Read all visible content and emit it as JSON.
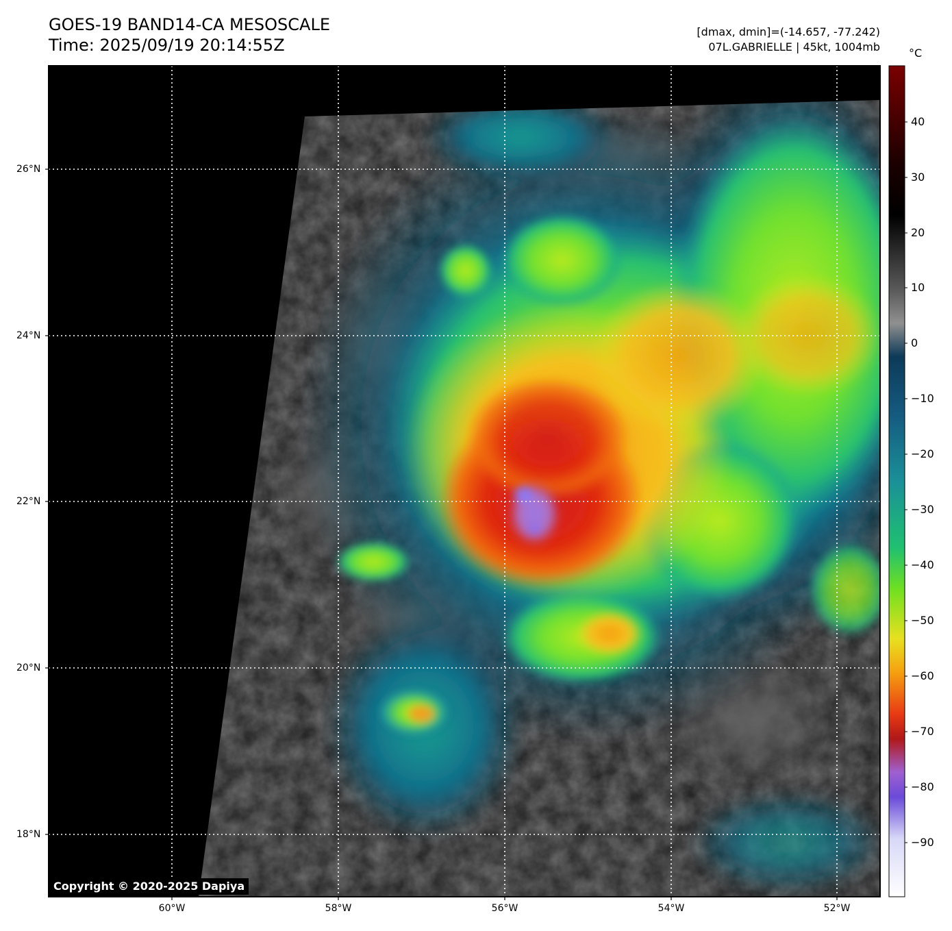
{
  "title": {
    "line1": "GOES-19 BAND14-CA MESOSCALE",
    "line2": "Time: 2025/09/19 20:14:55Z"
  },
  "meta": {
    "line1": "[dmax, dmin]=(-14.657, -77.242)",
    "line2": "07L.GABRIELLE | 45kt, 1004mb"
  },
  "colorbar": {
    "unit": "°C",
    "ticks": [
      "40",
      "30",
      "20",
      "10",
      "0",
      "−10",
      "−20",
      "−30",
      "−40",
      "−50",
      "−60",
      "−70",
      "−80",
      "−90"
    ]
  },
  "axes": {
    "lat_labels": [
      "26°N",
      "24°N",
      "22°N",
      "20°N",
      "18°N"
    ],
    "lon_labels": [
      "60°W",
      "58°W",
      "56°W",
      "54°W",
      "52°W"
    ]
  },
  "copyright": "Copyright © 2020-2025 Dapiya"
}
